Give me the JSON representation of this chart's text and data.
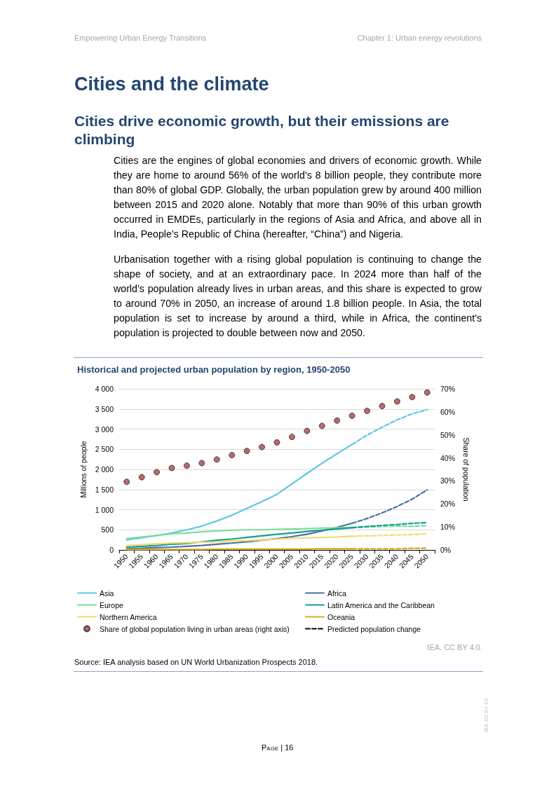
{
  "chart_data": {
    "type": "line",
    "title": "Historical and projected urban population by region, 1950-2050",
    "ylabel": "Millions of people",
    "y2label": "Share of population",
    "categories": [
      "1950",
      "1955",
      "1960",
      "1965",
      "1970",
      "1975",
      "1980",
      "1985",
      "1990",
      "1995",
      "2000",
      "2005",
      "2010",
      "2015",
      "2020",
      "2025",
      "2030",
      "2035",
      "2040",
      "2045",
      "2050"
    ],
    "series": [
      {
        "name": "Asia",
        "color": "#5bc8e8",
        "values": [
          250,
          300,
          360,
          420,
          500,
          590,
          720,
          860,
          1030,
          1200,
          1380,
          1640,
          1900,
          2150,
          2390,
          2620,
          null,
          null,
          null,
          null,
          null
        ]
      },
      {
        "color": "#5bc8e8",
        "line_style": "dashed",
        "values": [
          null,
          null,
          null,
          null,
          null,
          null,
          null,
          null,
          null,
          null,
          null,
          null,
          null,
          null,
          null,
          2620,
          2850,
          3050,
          3230,
          3380,
          3480
        ]
      },
      {
        "name": "Africa",
        "color": "#4b6fa5",
        "values": [
          30,
          40,
          60,
          70,
          90,
          110,
          140,
          170,
          200,
          240,
          280,
          330,
          390,
          470,
          560,
          660,
          null,
          null,
          null,
          null,
          null
        ]
      },
      {
        "color": "#4b6fa5",
        "line_style": "dashed",
        "values": [
          null,
          null,
          null,
          null,
          null,
          null,
          null,
          null,
          null,
          null,
          null,
          null,
          null,
          null,
          null,
          660,
          780,
          920,
          1080,
          1260,
          1490
        ]
      },
      {
        "name": "Europe",
        "color": "#7ddc9e",
        "values": [
          280,
          320,
          360,
          400,
          420,
          450,
          470,
          490,
          500,
          500,
          510,
          520,
          530,
          540,
          550,
          560,
          null,
          null,
          null,
          null,
          null
        ]
      },
      {
        "color": "#7ddc9e",
        "line_style": "dashed",
        "values": [
          null,
          null,
          null,
          null,
          null,
          null,
          null,
          null,
          null,
          null,
          null,
          null,
          null,
          null,
          null,
          560,
          570,
          580,
          590,
          590,
          600
        ]
      },
      {
        "name": "Latin America and the Caribbean",
        "color": "#12a08c",
        "values": [
          70,
          90,
          110,
          140,
          160,
          200,
          240,
          270,
          310,
          350,
          390,
          420,
          460,
          490,
          520,
          550,
          null,
          null,
          null,
          null,
          null
        ]
      },
      {
        "color": "#12a08c",
        "line_style": "dashed",
        "values": [
          null,
          null,
          null,
          null,
          null,
          null,
          null,
          null,
          null,
          null,
          null,
          null,
          null,
          null,
          null,
          550,
          580,
          610,
          630,
          660,
          680
        ]
      },
      {
        "name": "Northern America",
        "color": "#f0dc6e",
        "values": [
          110,
          130,
          150,
          170,
          180,
          190,
          200,
          220,
          230,
          250,
          270,
          290,
          300,
          310,
          320,
          340,
          null,
          null,
          null,
          null,
          null
        ]
      },
      {
        "color": "#f0dc6e",
        "line_style": "dashed",
        "values": [
          null,
          null,
          null,
          null,
          null,
          null,
          null,
          null,
          null,
          null,
          null,
          null,
          null,
          null,
          null,
          340,
          350,
          360,
          370,
          380,
          400
        ]
      },
      {
        "name": "Oceania",
        "color": "#d9a92a",
        "values": [
          10,
          10,
          10,
          10,
          10,
          10,
          20,
          20,
          20,
          20,
          20,
          20,
          20,
          30,
          30,
          30,
          null,
          null,
          null,
          null,
          null
        ]
      },
      {
        "color": "#d9a92a",
        "line_style": "dashed",
        "values": [
          null,
          null,
          null,
          null,
          null,
          null,
          null,
          null,
          null,
          null,
          null,
          null,
          null,
          null,
          null,
          30,
          30,
          30,
          30,
          40,
          40
        ]
      },
      {
        "name": "Share of global population living in urban areas (right axis)",
        "type": "scatter",
        "axis": "y2",
        "marker": "circle",
        "color": "#a0484a",
        "values": [
          29.6,
          31.6,
          33.8,
          35.6,
          36.6,
          37.7,
          39.3,
          41.2,
          43.0,
          44.7,
          46.7,
          49.1,
          51.7,
          53.9,
          56.2,
          58.3,
          60.4,
          62.5,
          64.5,
          66.4,
          68.4
        ]
      },
      {
        "name": "Predicted population change",
        "color": "#000000",
        "line_style": "dashed",
        "values": [
          null,
          null,
          null,
          null,
          null,
          null,
          null,
          null,
          null,
          null,
          null,
          null,
          null,
          null,
          null,
          null,
          null,
          null,
          null,
          null,
          null
        ]
      }
    ],
    "ylim": [
      0,
      4000
    ],
    "yticks": [
      0,
      500,
      {
        "value": 1000,
        "label": "1 000"
      },
      {
        "value": 1500,
        "label": "1 500"
      },
      {
        "value": 2000,
        "label": "2 000"
      },
      {
        "value": 2500,
        "label": "2 500"
      },
      {
        "value": 3000,
        "label": "3 000"
      },
      {
        "value": 3500,
        "label": "3 500"
      },
      {
        "value": 4000,
        "label": "4 000"
      }
    ],
    "y2lim": [
      0,
      70
    ],
    "y2ticks": [
      {
        "value": 0,
        "label": "0%"
      },
      {
        "value": 10,
        "label": "10%"
      },
      {
        "value": 20,
        "label": "20%"
      },
      {
        "value": 30,
        "label": "30%"
      },
      {
        "value": 40,
        "label": "40%"
      },
      {
        "value": 50,
        "label": "50%"
      },
      {
        "value": 60,
        "label": "60%"
      },
      {
        "value": 70,
        "label": "70%"
      }
    ],
    "grid": "y",
    "legend": "bottom",
    "marker": "none",
    "annotations": [
      "Empowering Urban Energy Transitions",
      "Chapter 1: Urban energy revolutions",
      "Cities and the climate",
      "Cities drive economic growth, but their emissions are climbing",
      "Cities are the engines of global economies and drivers of economic growth. While they are home to around 56% of the world’s 8 billion people, they contribute more than 80% of global GDP. Globally, the urban population grew by around 400 million between 2015 and 2020 alone. Notably that more than 90% of this urban growth occurred in EMDEs, particularly in the regions of Asia and Africa, and above all in India, People’s Republic of China (hereafter, “China”) and Nigeria.",
      "Urbanisation together with a rising global population is continuing to change the shape of society, and at an extraordinary pace. In 2024 more than half of the world’s population already lives in urban areas, and this share is expected to grow to around 70% in 2050, an increase of around 1.8 billion people. In Asia, the total population is set to increase by around a third, while in Africa, the continent's population is projected to double between now and 2050.",
      "IEA. CC BY 4.0.",
      "Source: IEA analysis based on UN World Urbanization Prospects 2018.",
      "Page | 16",
      "IEA. CC BY 4.0."
    ]
  }
}
